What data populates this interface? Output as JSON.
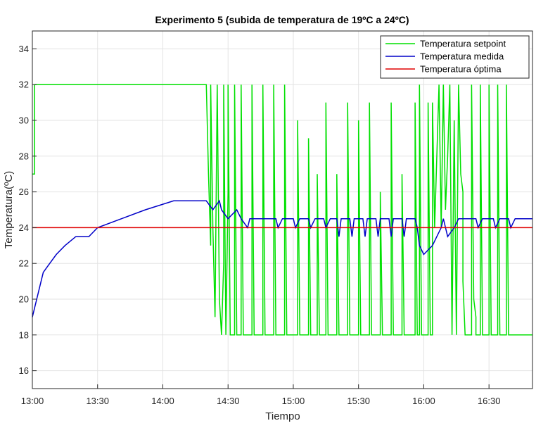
{
  "chart_data": {
    "type": "line",
    "title": "Experimento 5 (subida de temperatura de 19ºC a 24ºC)",
    "xlabel": "Tiempo",
    "ylabel": "Temperatura(ºC)",
    "xlim": [
      "13:00",
      "16:50"
    ],
    "ylim": [
      15,
      35
    ],
    "grid": true,
    "legend_position": "top-right",
    "x_ticks": [
      "13:00",
      "13:30",
      "14:00",
      "14:30",
      "15:00",
      "15:30",
      "16:00",
      "16:30"
    ],
    "y_ticks": [
      16,
      18,
      20,
      22,
      24,
      26,
      28,
      30,
      32,
      34
    ],
    "series": [
      {
        "name": "Temperatura setpoint",
        "color": "#00e000",
        "note": "values sampled from the plotted trace; time in HH:MM",
        "points": [
          [
            "13:00",
            27
          ],
          [
            "13:01",
            27
          ],
          [
            "13:01",
            32
          ],
          [
            "14:20",
            32
          ],
          [
            "14:21",
            27
          ],
          [
            "14:22",
            23
          ],
          [
            "14:22",
            32
          ],
          [
            "14:23",
            24
          ],
          [
            "14:24",
            19
          ],
          [
            "14:25",
            32
          ],
          [
            "14:26",
            20
          ],
          [
            "14:27",
            18
          ],
          [
            "14:28",
            22
          ],
          [
            "14:28",
            32
          ],
          [
            "14:29",
            18
          ],
          [
            "14:30",
            26
          ],
          [
            "14:30",
            32
          ],
          [
            "14:31",
            18
          ],
          [
            "14:33",
            18
          ],
          [
            "14:33",
            32
          ],
          [
            "14:34",
            18
          ],
          [
            "14:36",
            18
          ],
          [
            "14:36",
            32
          ],
          [
            "14:37",
            18
          ],
          [
            "14:41",
            18
          ],
          [
            "14:41",
            32
          ],
          [
            "14:42",
            18
          ],
          [
            "14:46",
            18
          ],
          [
            "14:46",
            32
          ],
          [
            "14:47",
            18
          ],
          [
            "14:51",
            18
          ],
          [
            "14:51",
            32
          ],
          [
            "14:52",
            18
          ],
          [
            "14:56",
            18
          ],
          [
            "14:56",
            32
          ],
          [
            "14:57",
            18
          ],
          [
            "15:02",
            18
          ],
          [
            "15:02",
            30
          ],
          [
            "15:03",
            18
          ],
          [
            "15:07",
            18
          ],
          [
            "15:07",
            29
          ],
          [
            "15:08",
            18
          ],
          [
            "15:11",
            18
          ],
          [
            "15:11",
            27
          ],
          [
            "15:12",
            18
          ],
          [
            "15:15",
            18
          ],
          [
            "15:15",
            31
          ],
          [
            "15:16",
            18
          ],
          [
            "15:20",
            18
          ],
          [
            "15:20",
            27
          ],
          [
            "15:21",
            18
          ],
          [
            "15:25",
            18
          ],
          [
            "15:25",
            31
          ],
          [
            "15:26",
            18
          ],
          [
            "15:30",
            18
          ],
          [
            "15:30",
            30
          ],
          [
            "15:31",
            18
          ],
          [
            "15:35",
            18
          ],
          [
            "15:35",
            31
          ],
          [
            "15:36",
            18
          ],
          [
            "15:40",
            18
          ],
          [
            "15:40",
            26
          ],
          [
            "15:41",
            18
          ],
          [
            "15:45",
            18
          ],
          [
            "15:45",
            31
          ],
          [
            "15:46",
            18
          ],
          [
            "15:50",
            18
          ],
          [
            "15:50",
            27
          ],
          [
            "15:51",
            18
          ],
          [
            "15:56",
            18
          ],
          [
            "15:56",
            31
          ],
          [
            "15:57",
            18
          ],
          [
            "15:58",
            18
          ],
          [
            "15:58",
            32
          ],
          [
            "15:59",
            18
          ],
          [
            "16:02",
            18
          ],
          [
            "16:02",
            31
          ],
          [
            "16:03",
            18
          ],
          [
            "16:04",
            18
          ],
          [
            "16:04",
            31
          ],
          [
            "16:05",
            24
          ],
          [
            "16:06",
            28
          ],
          [
            "16:07",
            32
          ],
          [
            "16:08",
            24
          ],
          [
            "16:09",
            32
          ],
          [
            "16:10",
            25
          ],
          [
            "16:11",
            28
          ],
          [
            "16:12",
            32
          ],
          [
            "16:13",
            18
          ],
          [
            "16:14",
            30
          ],
          [
            "16:15",
            18
          ],
          [
            "16:16",
            32
          ],
          [
            "16:17",
            27
          ],
          [
            "16:18",
            26
          ],
          [
            "16:18",
            21
          ],
          [
            "16:19",
            18
          ],
          [
            "16:22",
            18
          ],
          [
            "16:22",
            32
          ],
          [
            "16:23",
            20
          ],
          [
            "16:24",
            19
          ],
          [
            "16:24",
            18
          ],
          [
            "16:26",
            18
          ],
          [
            "16:26",
            32
          ],
          [
            "16:27",
            18
          ],
          [
            "16:30",
            18
          ],
          [
            "16:30",
            32
          ],
          [
            "16:31",
            18
          ],
          [
            "16:34",
            18
          ],
          [
            "16:34",
            32
          ],
          [
            "16:35",
            18
          ],
          [
            "16:38",
            18
          ],
          [
            "16:38",
            32
          ],
          [
            "16:39",
            18
          ],
          [
            "16:50",
            18
          ]
        ]
      },
      {
        "name": "Temperatura medida",
        "color": "#0000c8",
        "note": "values sampled from the plotted trace; time in HH:MM",
        "points": [
          [
            "13:00",
            19
          ],
          [
            "13:01",
            19.5
          ],
          [
            "13:02",
            20
          ],
          [
            "13:03",
            20.5
          ],
          [
            "13:04",
            21
          ],
          [
            "13:05",
            21.5
          ],
          [
            "13:08",
            22
          ],
          [
            "13:11",
            22.5
          ],
          [
            "13:15",
            23
          ],
          [
            "13:20",
            23.5
          ],
          [
            "13:26",
            23.5
          ],
          [
            "13:30",
            24
          ],
          [
            "13:41",
            24.5
          ],
          [
            "13:52",
            25
          ],
          [
            "14:05",
            25.5
          ],
          [
            "14:20",
            25.5
          ],
          [
            "14:23",
            25
          ],
          [
            "14:26",
            25.5
          ],
          [
            "14:27",
            25
          ],
          [
            "14:30",
            24.5
          ],
          [
            "14:34",
            25
          ],
          [
            "14:36",
            24.5
          ],
          [
            "14:39",
            24
          ],
          [
            "14:40",
            24.5
          ],
          [
            "14:52",
            24.5
          ],
          [
            "14:53",
            24
          ],
          [
            "14:55",
            24.5
          ],
          [
            "15:00",
            24.5
          ],
          [
            "15:01",
            24
          ],
          [
            "15:03",
            24.5
          ],
          [
            "15:07",
            24.5
          ],
          [
            "15:08",
            24
          ],
          [
            "15:10",
            24.5
          ],
          [
            "15:14",
            24.5
          ],
          [
            "15:15",
            24
          ],
          [
            "15:17",
            24.5
          ],
          [
            "15:20",
            24.5
          ],
          [
            "15:21",
            23.5
          ],
          [
            "15:22",
            24.5
          ],
          [
            "15:26",
            24.5
          ],
          [
            "15:27",
            23.5
          ],
          [
            "15:28",
            24.5
          ],
          [
            "15:32",
            24.5
          ],
          [
            "15:33",
            23.5
          ],
          [
            "15:34",
            24.5
          ],
          [
            "15:38",
            24.5
          ],
          [
            "15:39",
            23.5
          ],
          [
            "15:40",
            24.5
          ],
          [
            "15:44",
            24.5
          ],
          [
            "15:45",
            23.5
          ],
          [
            "15:46",
            24.5
          ],
          [
            "15:50",
            24.5
          ],
          [
            "15:51",
            23.5
          ],
          [
            "15:52",
            24.5
          ],
          [
            "15:56",
            24.5
          ],
          [
            "15:57",
            24
          ],
          [
            "15:58",
            23
          ],
          [
            "16:00",
            22.5
          ],
          [
            "16:04",
            23
          ],
          [
            "16:06",
            23.5
          ],
          [
            "16:08",
            24
          ],
          [
            "16:09",
            24.5
          ],
          [
            "16:11",
            23.5
          ],
          [
            "16:14",
            24
          ],
          [
            "16:16",
            24.5
          ],
          [
            "16:24",
            24.5
          ],
          [
            "16:25",
            24
          ],
          [
            "16:27",
            24.5
          ],
          [
            "16:32",
            24.5
          ],
          [
            "16:33",
            24
          ],
          [
            "16:35",
            24.5
          ],
          [
            "16:39",
            24.5
          ],
          [
            "16:40",
            24
          ],
          [
            "16:42",
            24.5
          ],
          [
            "16:50",
            24.5
          ]
        ]
      },
      {
        "name": "Temperatura óptima",
        "color": "#e00000",
        "points": [
          [
            "13:00",
            24
          ],
          [
            "16:50",
            24
          ]
        ]
      }
    ]
  }
}
